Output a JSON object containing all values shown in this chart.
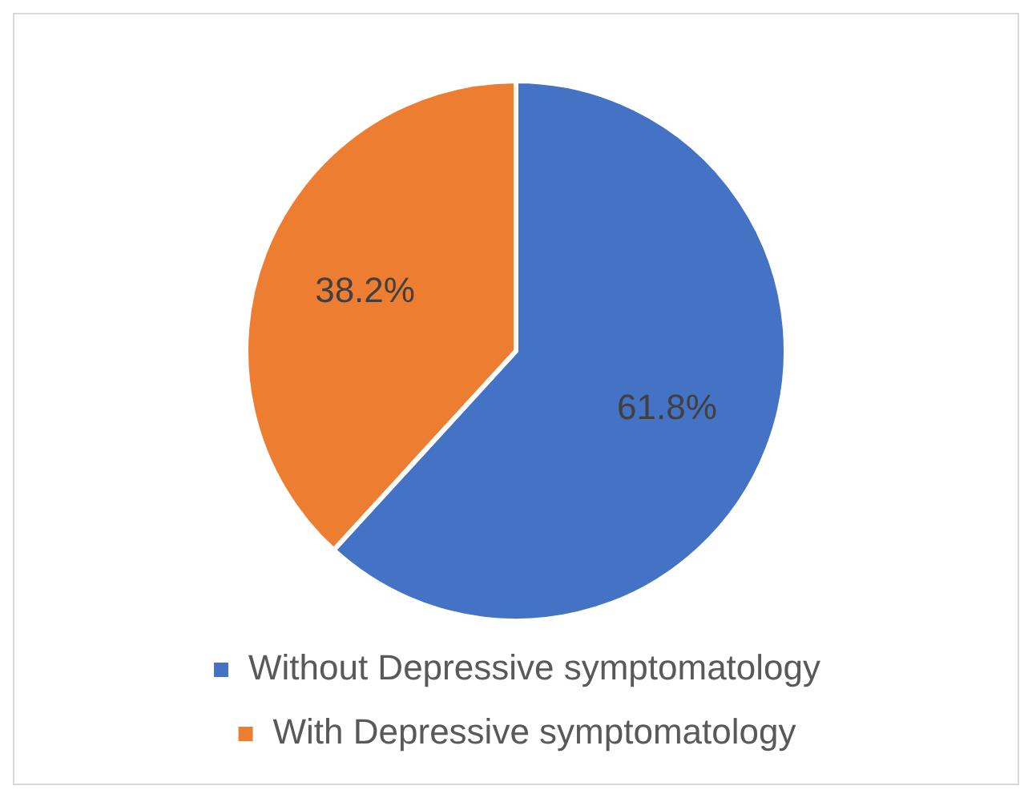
{
  "chart_data": {
    "type": "pie",
    "categories": [
      "Without Depressive symptomatology",
      "With Depressive symptomatology"
    ],
    "values": [
      61.8,
      38.2
    ],
    "colors": [
      "#4472c4",
      "#ed7d31"
    ],
    "value_labels": [
      "61.8%",
      "38.2%"
    ],
    "legend": "bottom"
  }
}
